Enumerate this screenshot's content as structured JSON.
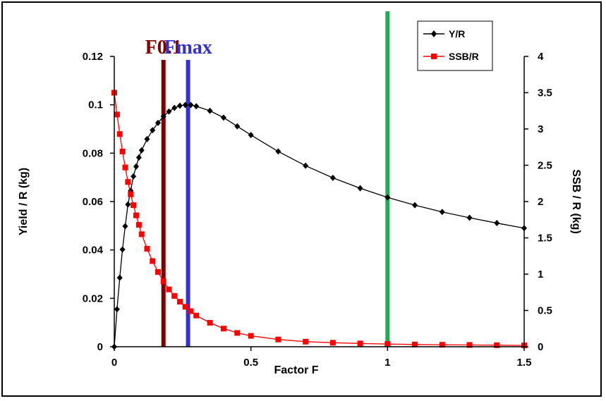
{
  "chart_data": {
    "type": "line",
    "title": "",
    "xlabel": "Factor F",
    "ylabel_left": "Yield / R (kg)",
    "ylabel_right": "SSB / R (kg)",
    "xlim": [
      0,
      1.5
    ],
    "ylim_left": [
      0,
      0.12
    ],
    "ylim_right": [
      0,
      4
    ],
    "x_ticks": [
      "0",
      "0.5",
      "1",
      "1.5"
    ],
    "y_left_ticks": [
      "0",
      "0.02",
      "0.04",
      "0.06",
      "0.08",
      "0.1",
      "0.12"
    ],
    "y_right_ticks": [
      "0",
      "0.5",
      "1",
      "1.5",
      "2",
      "2.5",
      "3",
      "3.5",
      "4"
    ],
    "grid": false,
    "legend_position": "top-right",
    "series": [
      {
        "name": "Y/R",
        "axis": "left",
        "color": "#000000",
        "marker": "diamond",
        "x": [
          0,
          0.01,
          0.02,
          0.03,
          0.04,
          0.05,
          0.06,
          0.07,
          0.08,
          0.09,
          0.1,
          0.12,
          0.14,
          0.16,
          0.18,
          0.2,
          0.22,
          0.24,
          0.26,
          0.28,
          0.3,
          0.35,
          0.4,
          0.45,
          0.5,
          0.6,
          0.7,
          0.8,
          0.9,
          1.0,
          1.1,
          1.2,
          1.3,
          1.4,
          1.5
        ],
        "values": [
          0,
          0.0155,
          0.0285,
          0.0402,
          0.0498,
          0.0588,
          0.0645,
          0.0704,
          0.0745,
          0.0782,
          0.0812,
          0.0858,
          0.0895,
          0.0925,
          0.0952,
          0.0972,
          0.0987,
          0.0996,
          0.0999,
          0.0999,
          0.0994,
          0.0975,
          0.0947,
          0.0911,
          0.0875,
          0.0807,
          0.0748,
          0.0698,
          0.0655,
          0.0617,
          0.0585,
          0.0557,
          0.0533,
          0.0511,
          0.049
        ]
      },
      {
        "name": "SSB/R",
        "axis": "right",
        "color": "#ff0000",
        "marker": "square",
        "x": [
          0,
          0.01,
          0.02,
          0.03,
          0.04,
          0.05,
          0.06,
          0.07,
          0.08,
          0.09,
          0.1,
          0.12,
          0.14,
          0.16,
          0.18,
          0.2,
          0.22,
          0.24,
          0.26,
          0.28,
          0.3,
          0.35,
          0.4,
          0.45,
          0.5,
          0.6,
          0.7,
          0.8,
          0.9,
          1.0,
          1.1,
          1.2,
          1.3,
          1.4,
          1.5
        ],
        "values": [
          3.5,
          3.2,
          2.93,
          2.69,
          2.47,
          2.27,
          2.1,
          1.95,
          1.81,
          1.68,
          1.55,
          1.35,
          1.18,
          1.03,
          0.9,
          0.79,
          0.7,
          0.62,
          0.55,
          0.49,
          0.43,
          0.33,
          0.25,
          0.19,
          0.15,
          0.1,
          0.07,
          0.055,
          0.045,
          0.037,
          0.031,
          0.027,
          0.024,
          0.021,
          0.018
        ]
      }
    ],
    "reference_lines": [
      {
        "label": "F0.1",
        "x": 0.18,
        "color": "#800000"
      },
      {
        "label": "Fmax",
        "x": 0.27,
        "color": "#3333cc"
      },
      {
        "label": "",
        "x": 1.0,
        "color": "#22aa55"
      }
    ]
  }
}
